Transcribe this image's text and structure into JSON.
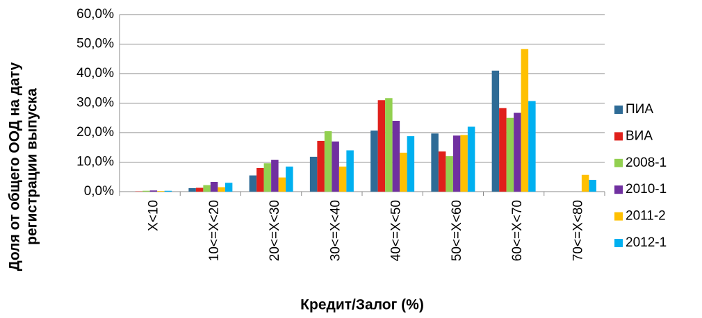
{
  "chart_data": {
    "type": "bar",
    "x_label": "Кредит/Залог (%)",
    "y_label": [
      "Доля от общего ООД на дату",
      "регистрации выпуска"
    ],
    "categories": [
      "X<10",
      "10<=X<20",
      "20<=X<30",
      "30<=X<40",
      "40<=X<50",
      "50<=X<60",
      "60<=X<70",
      "70<=X<80"
    ],
    "series": [
      {
        "name": "ПИА",
        "color": "#2e6b96",
        "values": [
          0,
          1.2,
          5.5,
          11.8,
          20.7,
          19.7,
          41.0,
          0
        ]
      },
      {
        "name": "ВИА",
        "color": "#e0201b",
        "values": [
          0.1,
          1.3,
          8.0,
          17.2,
          31.0,
          13.6,
          28.3,
          0
        ]
      },
      {
        "name": "2008-1",
        "color": "#92d050",
        "values": [
          0.3,
          2.2,
          9.6,
          20.5,
          31.7,
          12.0,
          25.0,
          0
        ]
      },
      {
        "name": "2010-1",
        "color": "#7030a0",
        "values": [
          0.4,
          3.3,
          10.8,
          17.0,
          24.0,
          19.0,
          26.7,
          0
        ]
      },
      {
        "name": "2011-2",
        "color": "#ffc000",
        "values": [
          0.2,
          1.5,
          4.8,
          8.5,
          13.2,
          19.2,
          48.3,
          5.7
        ]
      },
      {
        "name": "2012-1",
        "color": "#00b0f0",
        "values": [
          0.3,
          3.0,
          8.5,
          14.0,
          18.8,
          22.0,
          30.7,
          4.0
        ]
      }
    ],
    "ylim": [
      0,
      60
    ],
    "yticks": [
      {
        "value": 0,
        "label": "0,0%"
      },
      {
        "value": 10,
        "label": "10,0%"
      },
      {
        "value": 20,
        "label": "20,0%"
      },
      {
        "value": 30,
        "label": "30,0%"
      },
      {
        "value": 40,
        "label": "40,0%"
      },
      {
        "value": 50,
        "label": "50,0%"
      },
      {
        "value": 60,
        "label": "60,0%"
      }
    ],
    "grid": true,
    "legend": "right"
  }
}
